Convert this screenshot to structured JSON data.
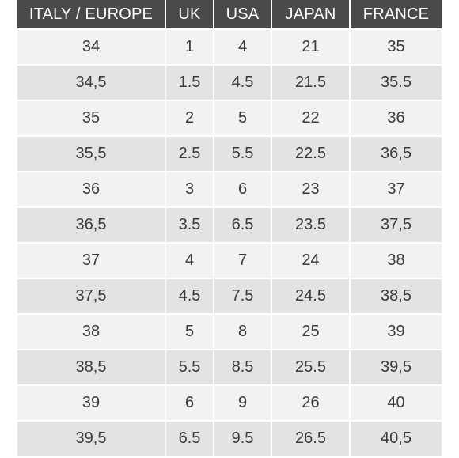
{
  "size_chart": {
    "headers": [
      "ITALY / EUROPE",
      "UK",
      "USA",
      "JAPAN",
      "FRANCE"
    ],
    "rows": [
      [
        "34",
        "1",
        "4",
        "21",
        "35"
      ],
      [
        "34,5",
        "1.5",
        "4.5",
        "21.5",
        "35.5"
      ],
      [
        "35",
        "2",
        "5",
        "22",
        "36"
      ],
      [
        "35,5",
        "2.5",
        "5.5",
        "22.5",
        "36,5"
      ],
      [
        "36",
        "3",
        "6",
        "23",
        "37"
      ],
      [
        "36,5",
        "3.5",
        "6.5",
        "23.5",
        "37,5"
      ],
      [
        "37",
        "4",
        "7",
        "24",
        "38"
      ],
      [
        "37,5",
        "4.5",
        "7.5",
        "24.5",
        "38,5"
      ],
      [
        "38",
        "5",
        "8",
        "25",
        "39"
      ],
      [
        "38,5",
        "5.5",
        "8.5",
        "25.5",
        "39,5"
      ],
      [
        "39",
        "6",
        "9",
        "26",
        "40"
      ],
      [
        "39,5",
        "6.5",
        "9.5",
        "26.5",
        "40,5"
      ]
    ]
  },
  "colors": {
    "header_bg": "#4a4a4a",
    "header_text": "#ffffff",
    "row_light": "#f2f2f2",
    "row_dark": "#e3e3e3",
    "cell_text": "#3a3a3a"
  }
}
